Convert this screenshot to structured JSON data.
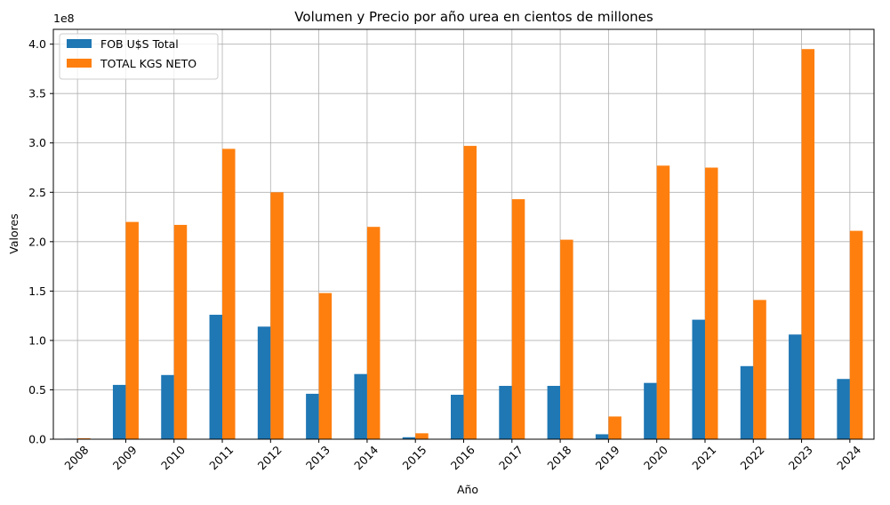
{
  "chart_data": {
    "type": "bar",
    "title": "Volumen y Precio por año urea en cientos de millones",
    "xlabel": "Año",
    "ylabel": "Valores",
    "y_scale_label": "1e8",
    "y_scale": 100000000,
    "ylim": [
      0,
      4.15
    ],
    "yticks": [
      "0.0",
      "0.5",
      "1.0",
      "1.5",
      "2.0",
      "2.5",
      "3.0",
      "3.5",
      "4.0"
    ],
    "grid": true,
    "legend_position": "top-left",
    "categories": [
      "2008",
      "2009",
      "2010",
      "2011",
      "2012",
      "2013",
      "2014",
      "2015",
      "2016",
      "2017",
      "2018",
      "2019",
      "2020",
      "2021",
      "2022",
      "2023",
      "2024"
    ],
    "series": [
      {
        "name": "FOB U$S Total",
        "color": "#1f77b4",
        "values": [
          0.005,
          0.55,
          0.65,
          1.26,
          1.14,
          0.46,
          0.66,
          0.02,
          0.45,
          0.54,
          0.54,
          0.05,
          0.57,
          1.21,
          0.74,
          1.06,
          0.61
        ]
      },
      {
        "name": "TOTAL KGS NETO",
        "color": "#ff7f0e",
        "values": [
          0.01,
          2.2,
          2.17,
          2.94,
          2.5,
          1.48,
          2.15,
          0.06,
          2.97,
          2.43,
          2.02,
          0.23,
          2.77,
          2.75,
          1.41,
          3.95,
          2.11
        ]
      }
    ]
  }
}
